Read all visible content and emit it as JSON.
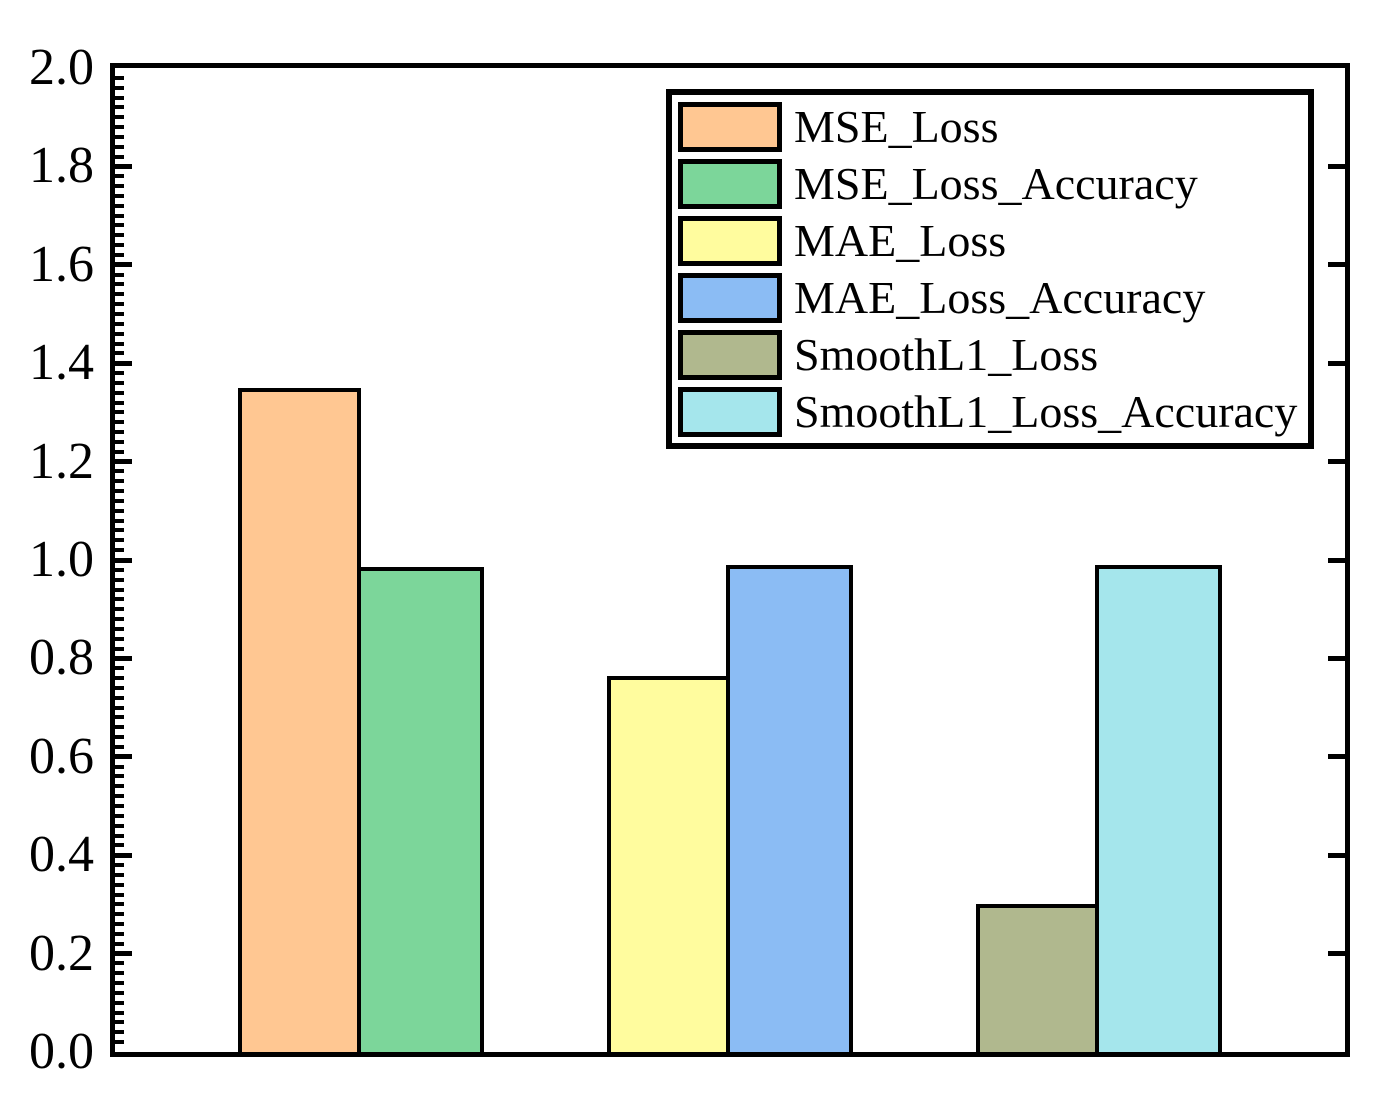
{
  "chart_data": {
    "type": "bar",
    "title": "",
    "xlabel": "",
    "ylabel": "",
    "ylim": [
      0.0,
      2.0
    ],
    "y_major_step": 0.2,
    "y_minor_step": 0.02,
    "y_tick_labels": [
      "0.0",
      "0.2",
      "0.4",
      "0.6",
      "0.8",
      "1.0",
      "1.2",
      "1.4",
      "1.6",
      "1.8",
      "2.0"
    ],
    "x_tick_labels": [],
    "grid": false,
    "legend_position": "top-right",
    "axis_color": "#000000",
    "background": "#FFFFFF",
    "bars": [
      {
        "label": "MSE_Loss",
        "value": 1.35,
        "color": "#FFC792",
        "group": 0
      },
      {
        "label": "MSE_Loss_Accuracy",
        "value": 0.985,
        "color": "#7CD69A",
        "group": 0
      },
      {
        "label": "MAE_Loss",
        "value": 0.765,
        "color": "#FFFC9E",
        "group": 1
      },
      {
        "label": "MAE_Loss_Accuracy",
        "value": 0.99,
        "color": "#8BBCF4",
        "group": 1
      },
      {
        "label": "SmoothL1_Loss",
        "value": 0.3,
        "color": "#B0B88E",
        "group": 2
      },
      {
        "label": "SmoothL1_Loss_Accuracy",
        "value": 0.99,
        "color": "#A5E6EC",
        "group": 2
      }
    ]
  }
}
